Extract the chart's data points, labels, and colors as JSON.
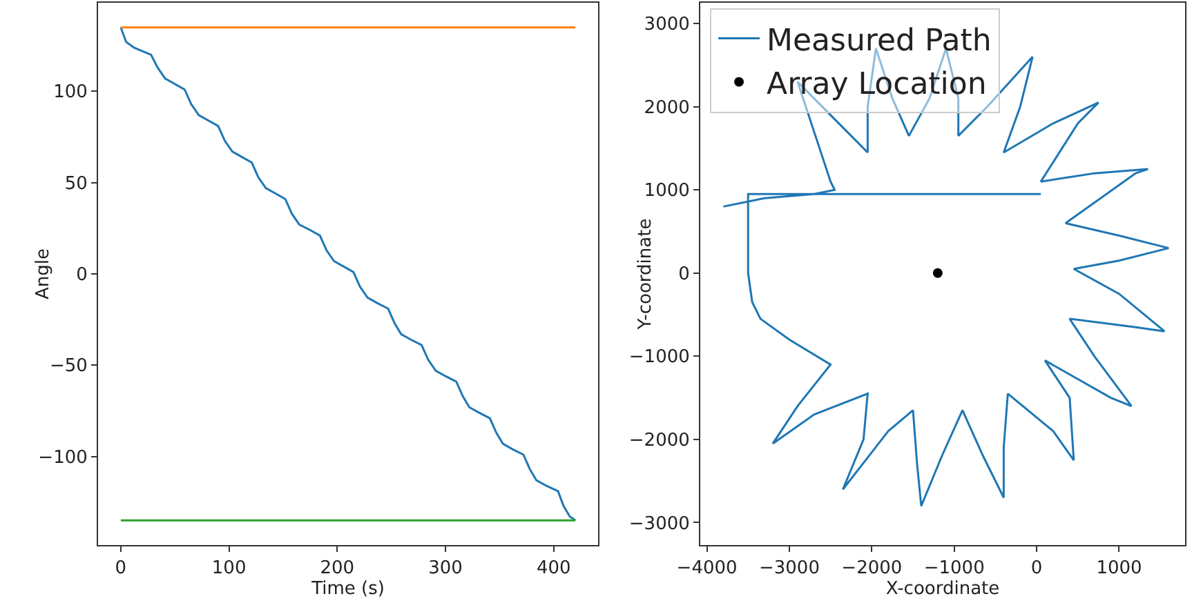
{
  "chart_data": [
    {
      "type": "line",
      "xlabel": "Time (s)",
      "ylabel": "Angle",
      "xlim": [
        -21,
        441
      ],
      "ylim": [
        -148.5,
        148.5
      ],
      "xticks": [
        0,
        100,
        200,
        300,
        400
      ],
      "yticks": [
        -100,
        -50,
        0,
        50,
        100
      ],
      "grid": false,
      "legend": false,
      "series": [
        {
          "color": "#1f77b4",
          "x": [
            0,
            5,
            12,
            28,
            34,
            41,
            50,
            59,
            65,
            72,
            81,
            90,
            96,
            103,
            112,
            121,
            127,
            134,
            143,
            152,
            158,
            165,
            175,
            184,
            190,
            197,
            206,
            215,
            221,
            228,
            237,
            247,
            253,
            259,
            268,
            278,
            284,
            291,
            300,
            310,
            316,
            322,
            331,
            341,
            347,
            353,
            362,
            372,
            378,
            384,
            393,
            404,
            409,
            415,
            418,
            420
          ],
          "values": [
            135,
            127,
            124,
            120,
            113,
            107,
            104,
            101,
            93,
            87,
            84,
            81,
            73,
            67,
            64,
            61,
            53,
            47,
            44,
            41,
            33,
            27,
            24,
            21,
            13,
            7,
            4,
            1,
            -7,
            -13,
            -16,
            -19,
            -27,
            -33,
            -36,
            -39,
            -47,
            -53,
            -56,
            -59,
            -67,
            -73,
            -76,
            -79,
            -87,
            -93,
            -96,
            -99,
            -107,
            -113,
            -116,
            -119,
            -127,
            -133,
            -134,
            -135
          ]
        },
        {
          "color": "#ff7f0e",
          "x": [
            0,
            420
          ],
          "values": [
            135,
            135
          ]
        },
        {
          "color": "#2ca02c",
          "x": [
            0,
            420
          ],
          "values": [
            -135,
            -135
          ]
        }
      ]
    },
    {
      "type": "line",
      "xlabel": "X-coordinate",
      "ylabel": "Y-coordinate",
      "xlim": [
        -4080,
        1800
      ],
      "ylim": [
        -3270,
        3250
      ],
      "xticks": [
        -4000,
        -3000,
        -2000,
        -1000,
        0,
        1000
      ],
      "yticks": [
        -3000,
        -2000,
        -1000,
        0,
        1000,
        2000,
        3000
      ],
      "grid": false,
      "legend": "top left",
      "series": [
        {
          "name": "Measured Path",
          "color": "#1f77b4",
          "x": [
            -3800,
            -3300,
            -2700,
            -2450,
            -2500,
            -2700,
            -2900,
            -2800,
            -2300,
            -2050,
            -2050,
            -1950,
            -1750,
            -1550,
            -1300,
            -1100,
            -950,
            -950,
            -600,
            -50,
            -200,
            -400,
            200,
            750,
            500,
            50,
            700,
            1350,
            1200,
            350,
            1000,
            1600,
            1000,
            450,
            1000,
            1550,
            1200,
            400,
            700,
            1150,
            900,
            100,
            400,
            450,
            200,
            -350,
            -400,
            -400,
            -650,
            -900,
            -1150,
            -1400,
            -1450,
            -1500,
            -1800,
            -2350,
            -2100,
            -2050,
            -2700,
            -3200,
            -2900,
            -2500,
            -3000,
            -3350,
            -3450,
            -3500,
            -3500,
            -3500,
            -2000,
            50
          ],
          "values": [
            800,
            900,
            950,
            1000,
            1100,
            1700,
            2300,
            2200,
            1700,
            1450,
            2000,
            2700,
            2100,
            1650,
            2100,
            2700,
            2100,
            1650,
            2000,
            2600,
            2000,
            1450,
            1800,
            2050,
            1800,
            1100,
            1200,
            1250,
            1200,
            600,
            450,
            300,
            150,
            50,
            -250,
            -700,
            -650,
            -550,
            -1000,
            -1600,
            -1500,
            -1050,
            -1500,
            -2250,
            -1900,
            -1450,
            -2100,
            -2700,
            -2200,
            -1650,
            -2200,
            -2800,
            -2300,
            -1650,
            -1900,
            -2600,
            -2000,
            -1450,
            -1700,
            -2050,
            -1600,
            -1100,
            -800,
            -550,
            -350,
            0,
            600,
            950,
            950,
            950
          ]
        },
        {
          "name": "Array Location",
          "type": "scatter",
          "marker": "circle",
          "color": "#000000",
          "x": [
            -1200
          ],
          "values": [
            0
          ]
        }
      ]
    }
  ]
}
